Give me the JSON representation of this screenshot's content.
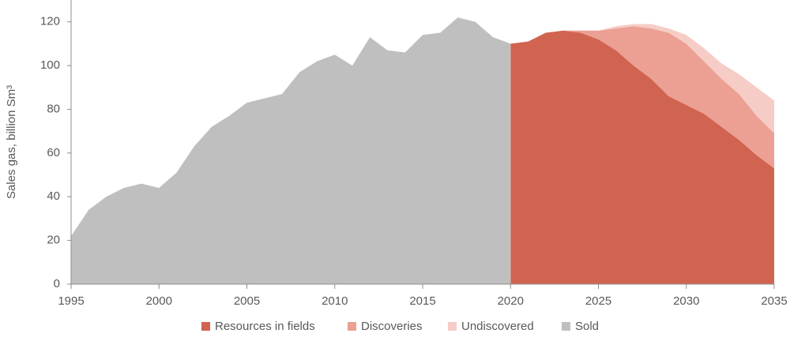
{
  "chart_data": {
    "type": "area",
    "y_label": "Sales gas, billion Sm³",
    "x": [
      1995,
      1996,
      1997,
      1998,
      1999,
      2000,
      2001,
      2002,
      2003,
      2004,
      2005,
      2006,
      2007,
      2008,
      2009,
      2010,
      2011,
      2012,
      2013,
      2014,
      2015,
      2016,
      2017,
      2018,
      2019,
      2020,
      2021,
      2022,
      2023,
      2024,
      2025,
      2026,
      2027,
      2028,
      2029,
      2030,
      2031,
      2032,
      2033,
      2034,
      2035
    ],
    "xlim": [
      1995,
      2035
    ],
    "xticks": [
      1995,
      2000,
      2005,
      2010,
      2015,
      2020,
      2025,
      2030,
      2035
    ],
    "ylim": [
      0,
      130
    ],
    "yticks": [
      0,
      20,
      40,
      60,
      80,
      100,
      120
    ],
    "series": [
      {
        "name": "Resources in fields",
        "color": "#d16450",
        "stacked": true,
        "values": [
          null,
          null,
          null,
          null,
          null,
          null,
          null,
          null,
          null,
          null,
          null,
          null,
          null,
          null,
          null,
          null,
          null,
          null,
          null,
          null,
          null,
          null,
          null,
          null,
          null,
          110,
          111,
          115,
          116,
          115,
          112,
          107,
          100,
          94,
          86,
          82,
          78,
          72,
          66,
          59,
          53
        ]
      },
      {
        "name": "Discoveries",
        "color": "#eba093",
        "stacked": true,
        "values": [
          null,
          null,
          null,
          null,
          null,
          null,
          null,
          null,
          null,
          null,
          null,
          null,
          null,
          null,
          null,
          null,
          null,
          null,
          null,
          null,
          null,
          null,
          null,
          null,
          null,
          0,
          0,
          0,
          0,
          1,
          4,
          10,
          18,
          23,
          29,
          28,
          24,
          22,
          21,
          18,
          16
        ]
      },
      {
        "name": "Undiscovered",
        "color": "#f6cdc6",
        "stacked": true,
        "values": [
          null,
          null,
          null,
          null,
          null,
          null,
          null,
          null,
          null,
          null,
          null,
          null,
          null,
          null,
          null,
          null,
          null,
          null,
          null,
          null,
          null,
          null,
          null,
          null,
          null,
          0,
          0,
          0,
          0,
          0,
          0,
          1,
          1,
          2,
          2,
          4,
          6,
          7,
          9,
          13,
          15
        ]
      },
      {
        "name": "Sold",
        "color": "#bfbfbf",
        "stacked": false,
        "values": [
          22,
          34,
          40,
          44,
          46,
          44,
          51,
          63,
          72,
          77,
          83,
          85,
          87,
          97,
          102,
          105,
          100,
          113,
          107,
          106,
          114,
          115,
          122,
          120,
          113,
          110,
          null,
          null,
          null,
          null,
          null,
          null,
          null,
          null,
          null,
          null,
          null,
          null,
          null,
          null,
          null
        ]
      }
    ]
  }
}
